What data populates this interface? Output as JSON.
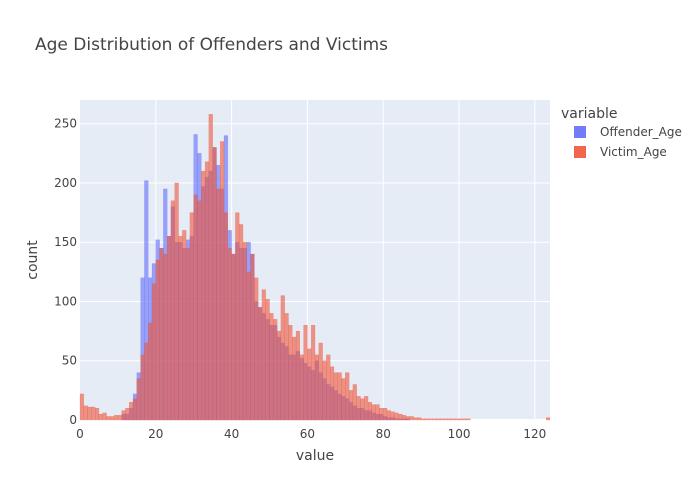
{
  "chart_data": {
    "type": "histogram",
    "title": "Age Distribution of Offenders and Victims",
    "xlabel": "value",
    "ylabel": "count",
    "xlim": [
      0,
      124
    ],
    "ylim": [
      0,
      270
    ],
    "xticks": [
      0,
      20,
      40,
      60,
      80,
      100,
      120
    ],
    "yticks": [
      0,
      50,
      100,
      150,
      200,
      250
    ],
    "grid": true,
    "barmode": "overlay",
    "legend": {
      "title": "variable",
      "position": "top-right"
    },
    "bin_start": 0,
    "bin_width": 1,
    "series": [
      {
        "name": "Offender_Age",
        "color": "#636efa",
        "values": [
          0,
          0,
          0,
          0,
          0,
          0,
          0,
          0,
          0,
          0,
          0,
          5,
          5,
          10,
          22,
          40,
          120,
          202,
          120,
          132,
          152,
          145,
          195,
          155,
          180,
          150,
          150,
          145,
          152,
          155,
          241,
          225,
          197,
          205,
          210,
          230,
          215,
          195,
          240,
          160,
          140,
          150,
          145,
          145,
          150,
          140,
          100,
          95,
          90,
          85,
          80,
          80,
          70,
          65,
          62,
          55,
          55,
          58,
          52,
          48,
          45,
          42,
          50,
          40,
          35,
          30,
          28,
          25,
          22,
          20,
          18,
          15,
          12,
          10,
          10,
          8,
          8,
          6,
          5,
          5,
          3,
          2,
          2,
          1,
          1,
          1,
          1,
          0,
          0,
          0,
          0,
          0,
          0,
          0,
          0,
          0,
          0,
          0,
          0,
          0,
          0,
          0,
          0,
          0,
          0,
          0,
          0,
          0,
          0,
          0,
          0,
          0,
          0,
          0,
          0,
          0,
          0,
          0,
          0,
          0,
          0,
          0,
          0,
          0
        ]
      },
      {
        "name": "Victim_Age",
        "color": "#ef553b",
        "values": [
          22,
          12,
          11,
          11,
          10,
          5,
          6,
          3,
          3,
          4,
          4,
          8,
          10,
          15,
          18,
          35,
          55,
          65,
          82,
          115,
          135,
          145,
          140,
          155,
          185,
          200,
          155,
          160,
          145,
          175,
          190,
          185,
          210,
          218,
          258,
          230,
          195,
          235,
          175,
          145,
          140,
          175,
          165,
          150,
          125,
          140,
          120,
          95,
          110,
          102,
          90,
          85,
          75,
          105,
          90,
          80,
          70,
          75,
          55,
          80,
          60,
          80,
          55,
          65,
          50,
          55,
          45,
          40,
          40,
          35,
          40,
          25,
          30,
          20,
          18,
          20,
          15,
          13,
          13,
          10,
          10,
          8,
          7,
          6,
          5,
          4,
          3,
          3,
          2,
          2,
          1,
          1,
          1,
          1,
          1,
          1,
          1,
          1,
          1,
          1,
          1,
          1,
          1,
          0,
          0,
          0,
          0,
          0,
          0,
          0,
          0,
          0,
          0,
          0,
          0,
          0,
          0,
          0,
          0,
          0,
          0,
          0,
          0,
          2
        ]
      }
    ]
  }
}
